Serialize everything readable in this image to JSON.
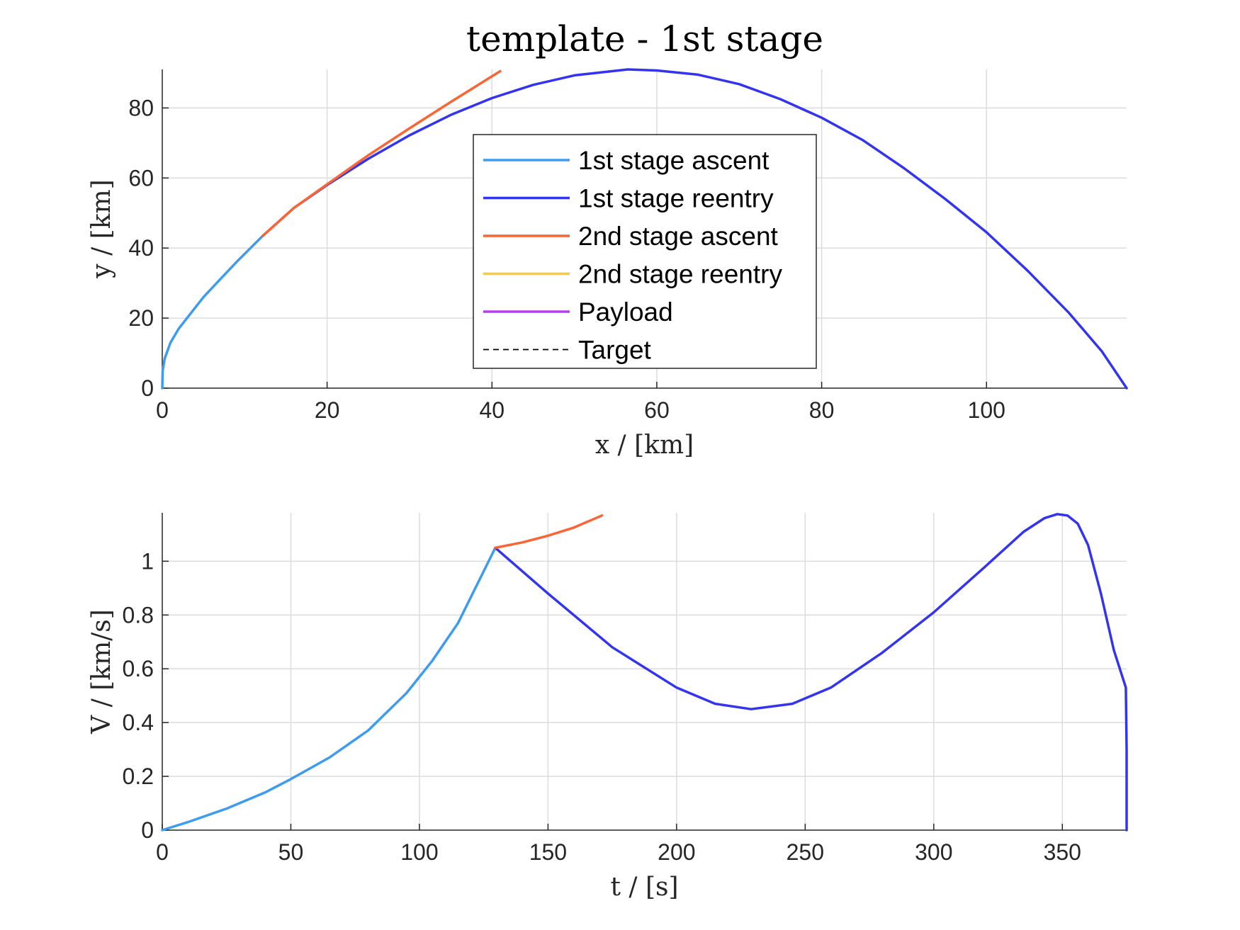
{
  "title": "template - 1st stage",
  "legend": {
    "placement": "upper-center of top plot",
    "entries": [
      {
        "label": "1st stage ascent",
        "color": "#3d9cf0",
        "dash": false
      },
      {
        "label": "1st stage reentry",
        "color": "#3334f0",
        "dash": false
      },
      {
        "label": "2nd stage ascent",
        "color": "#f96535",
        "dash": false
      },
      {
        "label": "2nd stage reentry",
        "color": "#fec937",
        "dash": false
      },
      {
        "label": "Payload",
        "color": "#b33ef0",
        "dash": false
      },
      {
        "label": "Target",
        "color": "#000000",
        "dash": true
      }
    ]
  },
  "chart_data": [
    {
      "type": "line",
      "xlabel": "x / [km]",
      "ylabel": "y / [km]",
      "xlim": [
        0,
        117
      ],
      "ylim": [
        0,
        91
      ],
      "xticks": [
        0,
        20,
        40,
        60,
        80,
        100
      ],
      "yticks": [
        0,
        20,
        40,
        60,
        80
      ],
      "grid": true,
      "series": [
        {
          "name": "1st stage ascent",
          "color": "#3d9cf0",
          "x": [
            0,
            0.05,
            0.3,
            1,
            2,
            3.5,
            5,
            7,
            9,
            12.2
          ],
          "y": [
            0,
            5,
            8.5,
            13,
            17,
            21.5,
            26,
            31,
            36,
            43.5
          ]
        },
        {
          "name": "1st stage reentry",
          "color": "#3334f0",
          "x": [
            12.2,
            16,
            20,
            25,
            30,
            35,
            40,
            45,
            50,
            56.5,
            60,
            65,
            70,
            75,
            80,
            85,
            90,
            95,
            100,
            105,
            110,
            114,
            117
          ],
          "y": [
            43.5,
            51.5,
            58,
            65.5,
            72.2,
            78,
            82.8,
            86.6,
            89.3,
            91,
            90.7,
            89.5,
            86.8,
            82.5,
            77.2,
            70.8,
            62.8,
            54,
            44.5,
            33.5,
            21.5,
            10.5,
            0
          ]
        },
        {
          "name": "2nd stage ascent",
          "color": "#f96535",
          "x": [
            12.2,
            16,
            20,
            25,
            30,
            35,
            41
          ],
          "y": [
            43.5,
            51.5,
            58.2,
            66.5,
            74.2,
            81.7,
            90.5
          ]
        }
      ]
    },
    {
      "type": "line",
      "xlabel": "t / [s]",
      "ylabel": "V / [km/s]",
      "xlim": [
        0,
        375
      ],
      "ylim": [
        0,
        1.18
      ],
      "xticks": [
        0,
        50,
        100,
        150,
        200,
        250,
        300,
        350
      ],
      "yticks": [
        0,
        0.2,
        0.4,
        0.6,
        0.8,
        1
      ],
      "grid": true,
      "series": [
        {
          "name": "1st stage ascent",
          "color": "#3d9cf0",
          "x": [
            0,
            10,
            25,
            40,
            50,
            65,
            80,
            95,
            105,
            115,
            129.5
          ],
          "y": [
            0,
            0.03,
            0.08,
            0.14,
            0.19,
            0.27,
            0.37,
            0.51,
            0.63,
            0.77,
            1.05
          ]
        },
        {
          "name": "1st stage reentry",
          "color": "#3334f0",
          "x": [
            129.5,
            150,
            175,
            200,
            215,
            229,
            245,
            260,
            280,
            300,
            320,
            335,
            343,
            348,
            352,
            356,
            360,
            365,
            370,
            374.7,
            375,
            375
          ],
          "y": [
            1.05,
            0.88,
            0.68,
            0.53,
            0.47,
            0.45,
            0.47,
            0.53,
            0.66,
            0.81,
            0.98,
            1.11,
            1.16,
            1.175,
            1.17,
            1.14,
            1.06,
            0.88,
            0.67,
            0.53,
            0.3,
            0
          ]
        },
        {
          "name": "2nd stage ascent",
          "color": "#f96535",
          "x": [
            129.5,
            140,
            150,
            160,
            171
          ],
          "y": [
            1.05,
            1.07,
            1.095,
            1.125,
            1.17
          ]
        }
      ]
    }
  ]
}
